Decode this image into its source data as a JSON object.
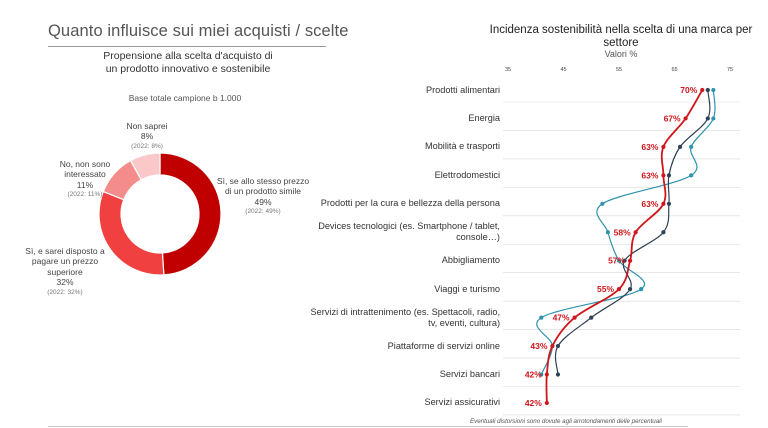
{
  "page": {
    "title": "Quanto influisce sui miei acquisti / scelte",
    "footnote": "Eventuali distorsioni sono dovute agli arrotondamenti delle percentuali"
  },
  "colors": {
    "dark_red": "#c00000",
    "mid_red": "#f04040",
    "light_red": "#f58c8c",
    "pale_red": "#fac8c8",
    "line_red": "#d0161a",
    "line_navy": "#2e4155",
    "line_teal": "#2f93ad"
  },
  "chart_data": [
    {
      "type": "pie",
      "variant": "donut",
      "title": "Propensione alla scelta d'acquisto di un prodotto innovativo e sostenibile",
      "subtitle": "Base totale campione b 1.000",
      "slices": [
        {
          "label": "Sì, se allo stesso prezzo di un prodotto simile",
          "value_text": "49%",
          "prev_text": "(2022: 49%)",
          "value": 49,
          "color": "#c00000"
        },
        {
          "label": "Sì, e sarei disposto a pagare un prezzo superiore",
          "value_text": "32%",
          "prev_text": "(2022: 32%)",
          "value": 32,
          "color": "#f04040"
        },
        {
          "label": "No, non sono interessato",
          "value_text": "11%",
          "prev_text": "(2022: 11%)",
          "value": 11,
          "color": "#f58c8c"
        },
        {
          "label": "Non saprei",
          "value_text": "8%",
          "prev_text": "(2022: 8%)",
          "value": 8,
          "color": "#fac8c8"
        }
      ]
    },
    {
      "type": "line",
      "title": "Incidenza sostenibilità nella scelta di una marca per settore",
      "subtitle": "Valori %",
      "xlim": [
        35,
        75
      ],
      "x_ticks": [
        "35",
        "45",
        "55",
        "65",
        "75"
      ],
      "categories": [
        "Prodotti alimentari",
        "Energia",
        "Mobilità e trasporti",
        "Elettrodomestici",
        "Prodotti per la cura e bellezza della persona",
        "Devices tecnologici (es. Smartphone / tablet, console…)",
        "Abbigliamento",
        "Viaggi e turismo",
        "Servizi di intrattenimento (es. Spettacoli, radio, tv, eventi, cultura)",
        "Piattaforme di servizi online",
        "Servizi bancari",
        "Servizi assicurativi"
      ],
      "series": [
        {
          "color": "#d0161a",
          "values": [
            70,
            67,
            63,
            63,
            63,
            58,
            57,
            55,
            47,
            43,
            42,
            42
          ],
          "labels": [
            "70%",
            "67%",
            "63%",
            "63%",
            "63%",
            "58%",
            "57%",
            "55%",
            "47%",
            "43%",
            "42%",
            "42%"
          ]
        },
        {
          "color": "#2e4155",
          "values": [
            71,
            71,
            66,
            64,
            64,
            63,
            56,
            57,
            50,
            44,
            44,
            null
          ]
        },
        {
          "color": "#2f93ad",
          "values": [
            72,
            72,
            68,
            68,
            52,
            53,
            55,
            59,
            41,
            43,
            41,
            null
          ]
        }
      ]
    }
  ]
}
